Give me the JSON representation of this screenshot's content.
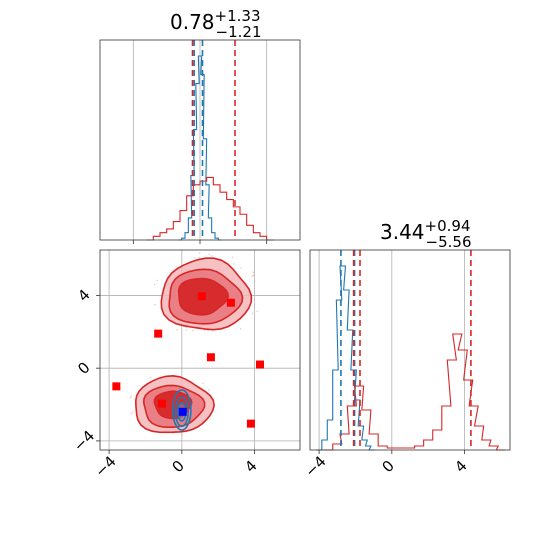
{
  "colors": {
    "blue": "#1f77b4",
    "red": "#d62728",
    "marker_red": "#ff0000",
    "marker_blue": "#0000ff",
    "fill_red_dark": "#d62728",
    "fill_red_mid": "#e8747a",
    "fill_red_light": "#f4b6b8"
  },
  "chart_data": [
    {
      "type": "histogram",
      "panel": "top-left",
      "title": {
        "value": "0.78",
        "upper": "+1.33",
        "lower": "−1.21"
      },
      "xlim": [
        -6,
        6
      ],
      "grid": true,
      "series": [
        {
          "name": "",
          "color": "blue",
          "x": [
            -1.2,
            -1.0,
            -0.8,
            -0.6,
            -0.45,
            -0.3,
            -0.15,
            0.0,
            0.15,
            0.3,
            0.45,
            0.6,
            0.8,
            1.0,
            1.2
          ],
          "density": [
            0.0,
            0.01,
            0.04,
            0.12,
            0.35,
            0.6,
            0.85,
            1.0,
            0.9,
            0.55,
            0.3,
            0.12,
            0.04,
            0.01,
            0.0
          ]
        },
        {
          "name": "",
          "color": "red",
          "x": [
            -3.0,
            -2.6,
            -2.2,
            -1.8,
            -1.4,
            -1.0,
            -0.6,
            -0.2,
            0.2,
            0.6,
            1.0,
            1.4,
            1.8,
            2.2,
            2.6,
            3.0,
            3.4,
            3.8,
            4.2
          ],
          "density": [
            0.0,
            0.02,
            0.04,
            0.06,
            0.1,
            0.16,
            0.24,
            0.3,
            0.32,
            0.34,
            0.3,
            0.26,
            0.22,
            0.18,
            0.14,
            0.08,
            0.04,
            0.02,
            0.0
          ]
        }
      ],
      "vlines": [
        {
          "x": -0.35,
          "color": "blue"
        },
        {
          "x": 0.15,
          "color": "blue"
        },
        {
          "x": -0.45,
          "color": "red"
        },
        {
          "x": 2.1,
          "color": "red"
        }
      ]
    },
    {
      "type": "histogram",
      "panel": "bottom-right",
      "title": {
        "value": "3.44",
        "upper": "+0.94",
        "lower": "−5.56"
      },
      "xlim": [
        -4.5,
        6.5
      ],
      "xticks": [
        -4,
        0,
        4
      ],
      "xtick_labels": [
        "−4",
        "0",
        "4"
      ],
      "grid": true,
      "series": [
        {
          "name": "",
          "color": "blue",
          "x": [
            -4.0,
            -3.7,
            -3.4,
            -3.1,
            -2.9,
            -2.7,
            -2.5,
            -2.3,
            -2.1,
            -1.9,
            -1.7,
            -1.5,
            -1.3,
            -1.1
          ],
          "density": [
            0.0,
            0.05,
            0.15,
            0.4,
            0.75,
            0.92,
            0.8,
            0.6,
            0.4,
            0.25,
            0.12,
            0.05,
            0.02,
            0.0
          ]
        },
        {
          "name": "",
          "color": "red",
          "x": [
            -3.5,
            -3.0,
            -2.6,
            -2.2,
            -1.8,
            -1.4,
            -1.0,
            -0.5,
            0.0,
            0.5,
            1.0,
            1.5,
            2.0,
            2.5,
            3.0,
            3.3,
            3.6,
            3.9,
            4.2,
            4.5,
            4.8,
            5.2,
            5.6,
            6.0
          ],
          "density": [
            0.0,
            0.03,
            0.08,
            0.22,
            0.32,
            0.2,
            0.08,
            0.02,
            0.01,
            0.01,
            0.01,
            0.02,
            0.05,
            0.1,
            0.22,
            0.45,
            0.58,
            0.5,
            0.35,
            0.22,
            0.12,
            0.05,
            0.02,
            0.0
          ]
        }
      ],
      "vlines": [
        {
          "x": -2.8,
          "color": "blue"
        },
        {
          "x": -2.05,
          "color": "blue"
        },
        {
          "x": -2.1,
          "color": "red"
        },
        {
          "x": -1.75,
          "color": "red"
        },
        {
          "x": 4.35,
          "color": "red"
        }
      ]
    },
    {
      "type": "scatter",
      "panel": "bottom-left",
      "xlim": [
        -4.5,
        6.5
      ],
      "ylim": [
        -4.5,
        6.5
      ],
      "xticks": [
        -4,
        0,
        4
      ],
      "xtick_labels": [
        "−4",
        "0",
        "4"
      ],
      "yticks": [
        -4,
        0,
        4
      ],
      "ytick_labels": [
        "−4",
        "0",
        "4"
      ],
      "grid": true,
      "contours_red": [
        {
          "level": "outer",
          "regions": [
            {
              "cx": 1.3,
              "cy": 4.0,
              "rx": 4.9,
              "ry": 3.9
            },
            {
              "cx": -0.5,
              "cy": -2.05,
              "rx": 4.3,
              "ry": 3.1
            }
          ]
        },
        {
          "level": "mid",
          "regions": [
            {
              "cx": 1.2,
              "cy": 3.9,
              "rx": 4.0,
              "ry": 3.0
            },
            {
              "cx": -0.5,
              "cy": -2.1,
              "rx": 3.3,
              "ry": 2.3
            }
          ]
        },
        {
          "level": "inner",
          "regions": [
            {
              "cx": 1.1,
              "cy": 3.95,
              "rx": 2.7,
              "ry": 2.0
            },
            {
              "cx": -0.5,
              "cy": -2.0,
              "rx": 2.0,
              "ry": 1.5
            }
          ]
        }
      ],
      "contours_blue": [
        {
          "cx": 0.0,
          "cy": -2.3,
          "rx": 1.0,
          "ry": 2.2
        },
        {
          "cx": 0.0,
          "cy": -2.4,
          "rx": 0.7,
          "ry": 1.6
        },
        {
          "cx": 0.0,
          "cy": -2.4,
          "rx": 0.45,
          "ry": 1.0
        }
      ],
      "red_markers": [
        {
          "x": 1.1,
          "y": 3.95
        },
        {
          "x": 2.7,
          "y": 3.6
        },
        {
          "x": -1.3,
          "y": 1.9
        },
        {
          "x": 1.6,
          "y": 0.6
        },
        {
          "x": 4.3,
          "y": 0.2
        },
        {
          "x": -3.6,
          "y": -1.0
        },
        {
          "x": -1.1,
          "y": -1.95
        },
        {
          "x": 3.8,
          "y": -3.05
        }
      ],
      "blue_markers": [
        {
          "x": 0.05,
          "y": -2.4
        }
      ],
      "bar_top_edge_y": -3.9
    }
  ]
}
